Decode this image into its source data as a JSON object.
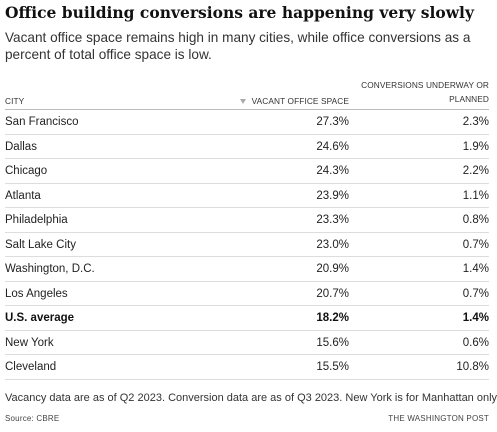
{
  "header": {
    "title": "Office building conversions are happening very slowly",
    "subtitle": "Vacant office space remains high in many cities, while office conversions as a percent of total office space is low."
  },
  "chart_data": {
    "type": "table",
    "columns": [
      "CITY",
      "VACANT OFFICE SPACE",
      "CONVERSIONS UNDERWAY OR PLANNED"
    ],
    "sorted_by": "VACANT OFFICE SPACE",
    "sort_direction": "descending",
    "rows": [
      {
        "city": "San Francisco",
        "vacant": "27.3%",
        "conversions": "2.3%",
        "bold": false
      },
      {
        "city": "Dallas",
        "vacant": "24.6%",
        "conversions": "1.9%",
        "bold": false
      },
      {
        "city": "Chicago",
        "vacant": "24.3%",
        "conversions": "2.2%",
        "bold": false
      },
      {
        "city": "Atlanta",
        "vacant": "23.9%",
        "conversions": "1.1%",
        "bold": false
      },
      {
        "city": "Philadelphia",
        "vacant": "23.3%",
        "conversions": "0.8%",
        "bold": false
      },
      {
        "city": "Salt Lake City",
        "vacant": "23.0%",
        "conversions": "0.7%",
        "bold": false
      },
      {
        "city": "Washington, D.C.",
        "vacant": "20.9%",
        "conversions": "1.4%",
        "bold": false
      },
      {
        "city": "Los Angeles",
        "vacant": "20.7%",
        "conversions": "0.7%",
        "bold": false
      },
      {
        "city": "U.S. average",
        "vacant": "18.2%",
        "conversions": "1.4%",
        "bold": true
      },
      {
        "city": "New York",
        "vacant": "15.6%",
        "conversions": "0.6%",
        "bold": false
      },
      {
        "city": "Cleveland",
        "vacant": "15.5%",
        "conversions": "10.8%",
        "bold": false
      }
    ]
  },
  "footer": {
    "note": "Vacancy data are as of Q2 2023. Conversion data are as of Q3 2023. New York is for Manhattan only.",
    "source": "Source: CBRE",
    "credit": "THE WASHINGTON POST"
  },
  "colors": {
    "text": "#111111",
    "muted": "#333333",
    "rule": "#dddddd",
    "sort_icon": "#aaaaaa"
  }
}
